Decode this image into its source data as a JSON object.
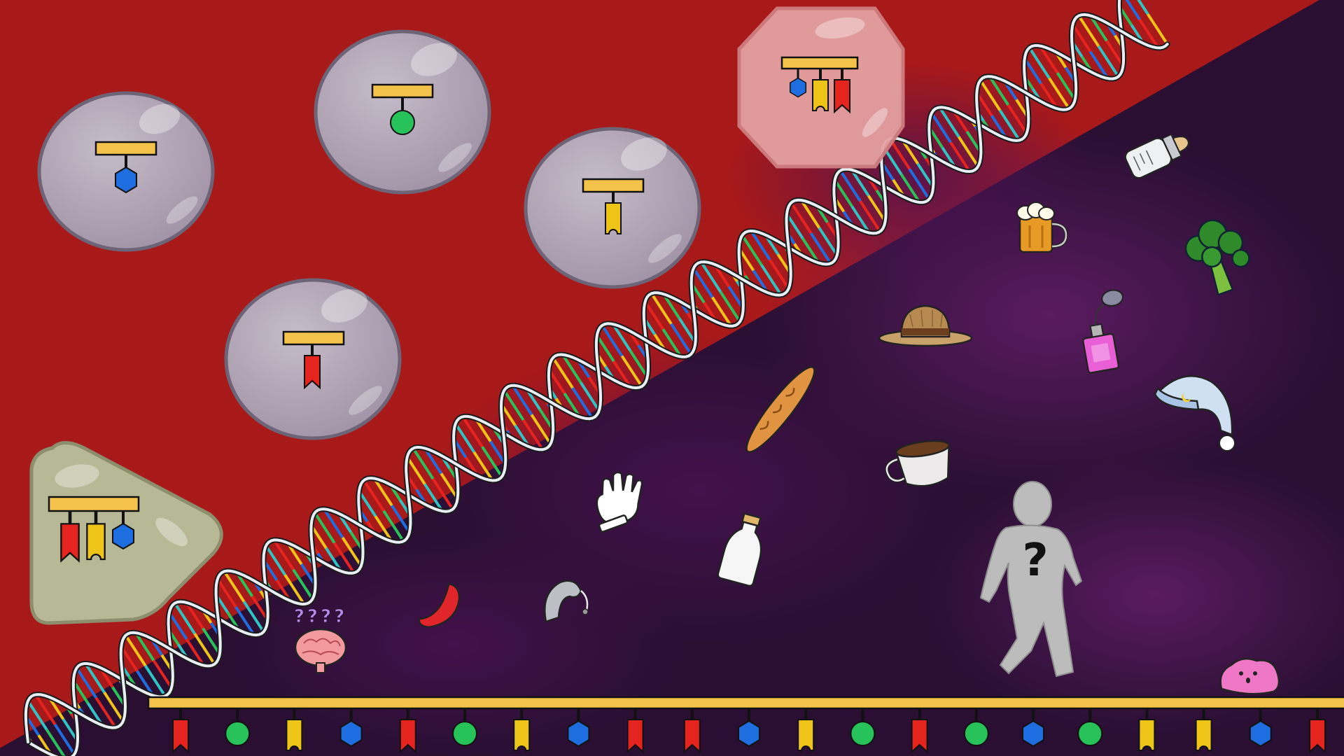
{
  "scene": {
    "colors": {
      "background_red": "#a8191a",
      "background_purple": "#2a0f33",
      "purple_mist": "#6a1f6e",
      "dna_strand": "#e9eef5",
      "cell_fill": "#b3a7b7",
      "cell_stroke": "#6d6478",
      "receptor_bar": "#f3c24a",
      "marker_red": "#e5231f",
      "marker_green": "#27c25a",
      "marker_yellow": "#efc419",
      "marker_blue": "#1f6ee0"
    },
    "cells": [
      {
        "id": "cell-blue-hexagon",
        "shape": "circle",
        "markers": [
          "blue-hexagon"
        ]
      },
      {
        "id": "cell-green-circle",
        "shape": "circle",
        "markers": [
          "green-circle"
        ]
      },
      {
        "id": "cell-yellow-tag",
        "shape": "circle",
        "markers": [
          "yellow-tag"
        ]
      },
      {
        "id": "cell-red-ribbon",
        "shape": "circle",
        "markers": [
          "red-ribbon"
        ]
      },
      {
        "id": "cell-octagon-multi",
        "shape": "octagon",
        "markers": [
          "blue-hexagon",
          "yellow-tag",
          "red-ribbon"
        ]
      },
      {
        "id": "cell-triangle-multi",
        "shape": "triangle",
        "markers": [
          "red-ribbon",
          "yellow-tag",
          "blue-hexagon"
        ]
      }
    ],
    "marker_sequence": [
      "red-ribbon",
      "green-circle",
      "yellow-tag",
      "blue-hexagon",
      "red-ribbon",
      "green-circle",
      "yellow-tag",
      "blue-hexagon",
      "red-ribbon",
      "red-ribbon",
      "blue-hexagon",
      "yellow-tag",
      "green-circle",
      "red-ribbon",
      "green-circle",
      "blue-hexagon",
      "green-circle",
      "yellow-tag",
      "yellow-tag",
      "blue-hexagon",
      "red-ribbon"
    ],
    "objects": [
      "baby-bottle-icon",
      "beer-mug-icon",
      "broccoli-icon",
      "straw-hat-icon",
      "perfume-bottle-icon",
      "baguette-icon",
      "nightcap-icon",
      "coffee-cup-icon",
      "glove-icon",
      "milk-bottle-icon",
      "hearing-aid-icon",
      "red-pepper-icon",
      "confused-brain-icon",
      "mystery-person-icon",
      "pink-blob-icon"
    ],
    "question_marks": {
      "brain": "????",
      "person": "?"
    }
  }
}
